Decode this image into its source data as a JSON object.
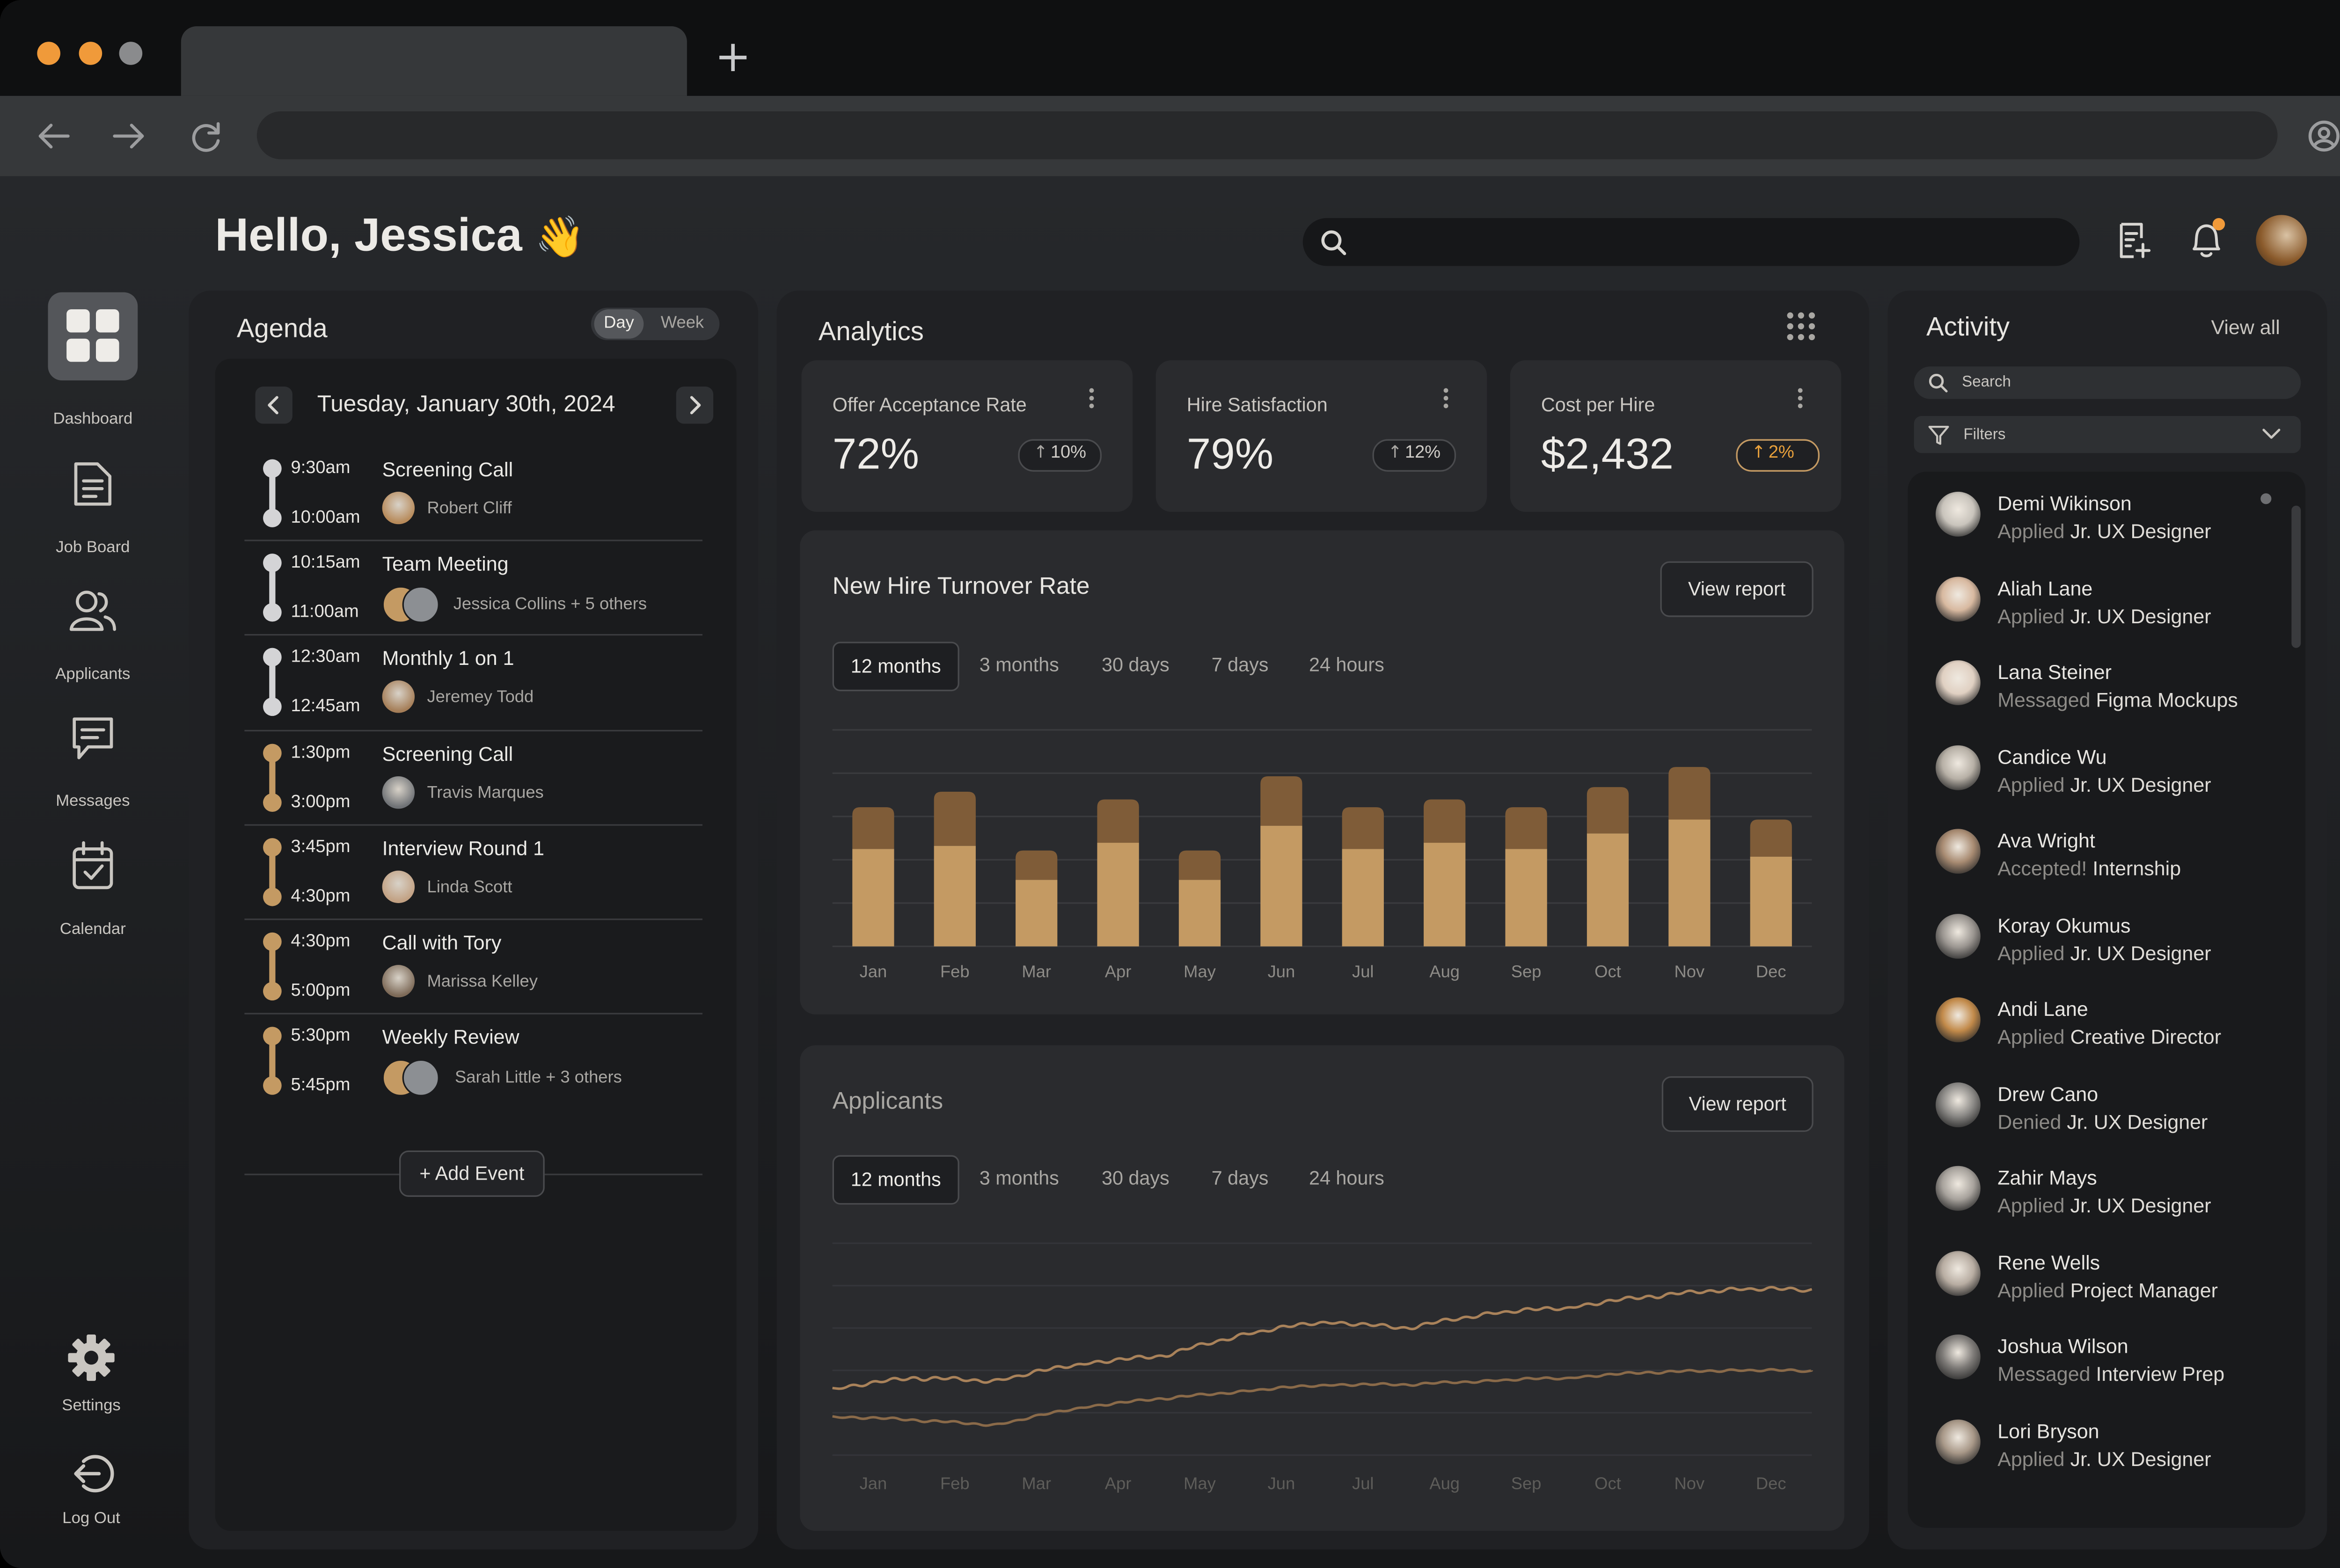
{
  "colors": {
    "accent": "#c49a63",
    "accent_dark": "#7f5c38",
    "bg": "#1a1b1d",
    "panel": "#202124",
    "card": "#2a2b2e"
  },
  "browser": {
    "new_tab_icon": "plus-icon"
  },
  "header": {
    "greeting": "Hello, Jessica",
    "wave": "👋"
  },
  "sidebar": {
    "items": [
      {
        "label": "Dashboard",
        "icon": "grid-icon",
        "active": true
      },
      {
        "label": "Job Board",
        "icon": "document-icon"
      },
      {
        "label": "Applicants",
        "icon": "users-icon"
      },
      {
        "label": "Messages",
        "icon": "message-icon"
      },
      {
        "label": "Calendar",
        "icon": "calendar-icon"
      }
    ],
    "settings": "Settings",
    "logout": "Log Out"
  },
  "agenda": {
    "title": "Agenda",
    "toggle": {
      "day": "Day",
      "week": "Week"
    },
    "date": "Tuesday, January 30th, 2024",
    "events": [
      {
        "start": "9:30am",
        "end": "10:00am",
        "title": "Screening Call",
        "people": "Robert Cliff",
        "state": "past"
      },
      {
        "start": "10:15am",
        "end": "11:00am",
        "title": "Team Meeting",
        "people": "Jessica Collins + 5 others",
        "state": "past"
      },
      {
        "start": "12:30am",
        "end": "12:45am",
        "title": "Monthly 1 on 1",
        "people": "Jeremey Todd",
        "state": "past"
      },
      {
        "start": "1:30pm",
        "end": "3:00pm",
        "title": "Screening Call",
        "people": "Travis Marques",
        "state": "upcoming"
      },
      {
        "start": "3:45pm",
        "end": "4:30pm",
        "title": "Interview Round 1",
        "people": "Linda Scott",
        "state": "upcoming"
      },
      {
        "start": "4:30pm",
        "end": "5:00pm",
        "title": "Call with Tory",
        "people": "Marissa Kelley",
        "state": "upcoming"
      },
      {
        "start": "5:30pm",
        "end": "5:45pm",
        "title": "Weekly Review",
        "people": "Sarah Little + 3 others",
        "state": "upcoming"
      }
    ],
    "add_event": "+ Add Event"
  },
  "analytics": {
    "title": "Analytics",
    "kpis": [
      {
        "label": "Offer Acceptance Rate",
        "value": "72%",
        "change": "10%",
        "highlight": false
      },
      {
        "label": "Hire Satisfaction",
        "value": "79%",
        "change": "12%",
        "highlight": false
      },
      {
        "label": "Cost per Hire",
        "value": "$2,432",
        "change": "2%",
        "highlight": true
      }
    ],
    "periods": [
      "12 months",
      "3 months",
      "30 days",
      "7 days",
      "24 hours"
    ],
    "view_report": "View report"
  },
  "chart_data": [
    {
      "type": "bar",
      "title": "New Hire Turnover Rate",
      "categories": [
        "Jan",
        "Feb",
        "Mar",
        "Apr",
        "May",
        "Jun",
        "Jul",
        "Aug",
        "Sep",
        "Oct",
        "Nov",
        "Dec"
      ],
      "series": [
        {
          "values": [
            63,
            65,
            43,
            67,
            43,
            78,
            63,
            67,
            63,
            73,
            82,
            58
          ]
        },
        {
          "values": [
            27,
            35,
            19,
            28,
            19,
            32,
            27,
            28,
            27,
            30,
            34,
            24
          ]
        }
      ],
      "ylim": [
        0,
        140
      ],
      "grid": true
    },
    {
      "type": "line",
      "title": "Applicants",
      "categories": [
        "Jan",
        "Feb",
        "Mar",
        "Apr",
        "May",
        "Jun",
        "Jul",
        "Aug",
        "Sep",
        "Oct",
        "Nov",
        "Dec"
      ],
      "series": [
        {
          "values": [
            38,
            44,
            42,
            52,
            56,
            68,
            76,
            72,
            80,
            84,
            90,
            94
          ]
        },
        {
          "values": [
            22,
            20,
            17,
            27,
            32,
            36,
            40,
            40,
            42,
            44,
            47,
            48
          ]
        }
      ],
      "ylim": [
        0,
        120
      ],
      "grid": true
    }
  ],
  "activity": {
    "title": "Activity",
    "view_all": "View all",
    "search_placeholder": "Search",
    "filters": "Filters",
    "items": [
      {
        "name": "Demi Wikinson",
        "action": "Applied",
        "target": "Jr. UX Designer",
        "unread": true
      },
      {
        "name": "Aliah Lane",
        "action": "Applied",
        "target": "Jr. UX Designer"
      },
      {
        "name": "Lana Steiner",
        "action": "Messaged",
        "target": "Figma Mockups"
      },
      {
        "name": "Candice Wu",
        "action": "Applied",
        "target": "Jr. UX Designer"
      },
      {
        "name": "Ava Wright",
        "action": "Accepted!",
        "target": "Internship"
      },
      {
        "name": "Koray Okumus",
        "action": "Applied",
        "target": "Jr. UX Designer"
      },
      {
        "name": "Andi Lane",
        "action": "Applied",
        "target": "Creative Director"
      },
      {
        "name": "Drew Cano",
        "action": "Denied",
        "target": "Jr. UX Designer"
      },
      {
        "name": "Zahir Mays",
        "action": "Applied",
        "target": "Jr. UX Designer"
      },
      {
        "name": "Rene Wells",
        "action": "Applied",
        "target": "Project Manager"
      },
      {
        "name": "Joshua Wilson",
        "action": "Messaged",
        "target": "Interview Prep"
      },
      {
        "name": "Lori Bryson",
        "action": "Applied",
        "target": "Jr. UX Designer"
      }
    ]
  }
}
